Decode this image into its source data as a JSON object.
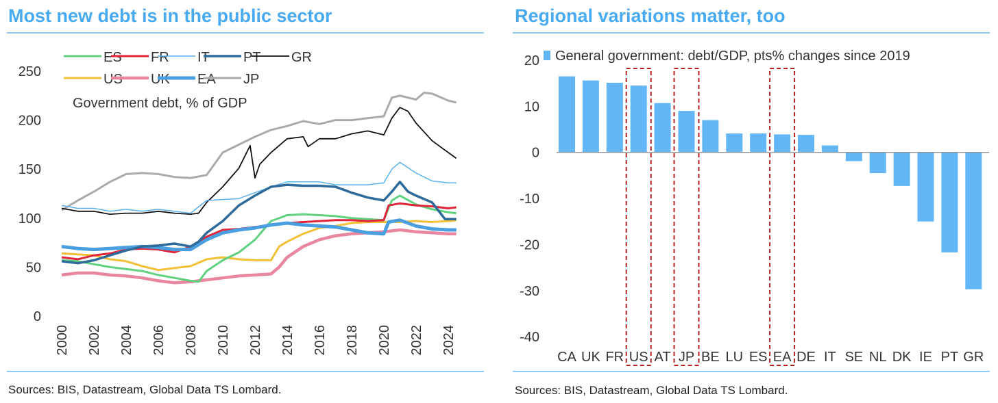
{
  "colors": {
    "title": "#4aaaf0",
    "rule": "#4aaaf0",
    "bar": "#63b6f5",
    "highlight_box": "#b22222"
  },
  "chart_data": [
    {
      "type": "line",
      "title": "Most new debt is in the public sector",
      "annotation": "Government debt, % of GDP",
      "source": "Sources: BIS, Datastream, Global Data TS Lombard.",
      "ylim": [
        0,
        250
      ],
      "yticks": [
        "0",
        "50",
        "100",
        "150",
        "200",
        "250"
      ],
      "xlim": [
        2000,
        2024.6
      ],
      "xticks": [
        "2000",
        "2002",
        "2004",
        "2006",
        "2008",
        "2010",
        "2012",
        "2014",
        "2016",
        "2018",
        "2020",
        "2022",
        "2024"
      ],
      "legend_placement": "top",
      "series": [
        {
          "name": "ES",
          "color": "#5fd17f",
          "width": 3,
          "x": [
            2000,
            2001,
            2002,
            2003,
            2004,
            2005,
            2006,
            2007,
            2008,
            2008.5,
            2009,
            2010,
            2011,
            2012,
            2013,
            2014,
            2015,
            2016,
            2017,
            2018,
            2019,
            2020,
            2020.5,
            2021,
            2022,
            2023,
            2024,
            2024.5
          ],
          "y": [
            57,
            56,
            53,
            50,
            48,
            46,
            42,
            39,
            36,
            35,
            46,
            57,
            65,
            78,
            97,
            103,
            104,
            103,
            102,
            100,
            99,
            98,
            118,
            123,
            114,
            109,
            106,
            105
          ]
        },
        {
          "name": "FR",
          "color": "#e0243a",
          "width": 3,
          "x": [
            2000,
            2001,
            2002,
            2003,
            2004,
            2005,
            2006,
            2007,
            2008,
            2009,
            2010,
            2011,
            2012,
            2013,
            2014,
            2015,
            2016,
            2017,
            2018,
            2019,
            2020,
            2020.3,
            2021,
            2022,
            2023,
            2024,
            2024.5
          ],
          "y": [
            60,
            58,
            62,
            64,
            68,
            69,
            68,
            65,
            71,
            81,
            88,
            89,
            91,
            93,
            95,
            96,
            97,
            98,
            98,
            97,
            98,
            113,
            115,
            113,
            112,
            110,
            111
          ]
        },
        {
          "name": "IT",
          "color": "#5bb1ee",
          "width": 1.5,
          "x": [
            2000,
            2001,
            2002,
            2003,
            2004,
            2005,
            2006,
            2007,
            2008,
            2009,
            2010,
            2011,
            2012,
            2013,
            2014,
            2015,
            2016,
            2017,
            2018,
            2019,
            2020,
            2020.5,
            2021,
            2022,
            2023,
            2024,
            2024.5
          ],
          "y": [
            113,
            110,
            110,
            107,
            109,
            107,
            109,
            107,
            105,
            118,
            119,
            120,
            126,
            132,
            137,
            137,
            137,
            134,
            134,
            134,
            136,
            150,
            157,
            146,
            138,
            136,
            136
          ]
        },
        {
          "name": "PT",
          "color": "#2f6b9a",
          "width": 3.5,
          "x": [
            2000,
            2001,
            2002,
            2003,
            2004,
            2005,
            2006,
            2007,
            2008,
            2008.5,
            2009,
            2010,
            2011,
            2012,
            2013,
            2014,
            2015,
            2016,
            2017,
            2018,
            2019,
            2020,
            2020.5,
            2021,
            2021.5,
            2022,
            2023,
            2023.8,
            2024.5
          ],
          "y": [
            56,
            54,
            57,
            62,
            67,
            71,
            72,
            74,
            71,
            76,
            85,
            97,
            113,
            123,
            132,
            134,
            133,
            133,
            132,
            126,
            121,
            118,
            127,
            137,
            127,
            123,
            116,
            99,
            99
          ]
        },
        {
          "name": "GR",
          "color": "#111111",
          "width": 1.8,
          "x": [
            2000,
            2001,
            2002,
            2003,
            2004,
            2005,
            2006,
            2007,
            2008,
            2008.5,
            2009,
            2010,
            2011,
            2011.7,
            2012,
            2012.3,
            2013,
            2014,
            2015,
            2015.3,
            2016,
            2017,
            2018,
            2019,
            2020,
            2020.5,
            2021,
            2021.5,
            2022,
            2023,
            2024,
            2024.5
          ],
          "y": [
            110,
            107,
            107,
            104,
            105,
            105,
            107,
            105,
            104,
            105,
            116,
            132,
            151,
            174,
            141,
            155,
            167,
            181,
            183,
            173,
            181,
            181,
            186,
            189,
            185,
            202,
            213,
            209,
            197,
            179,
            167,
            161
          ]
        },
        {
          "name": "US",
          "color": "#f2c037",
          "width": 3,
          "x": [
            2000,
            2001,
            2002,
            2003,
            2004,
            2005,
            2006,
            2007,
            2008,
            2009,
            2010,
            2011,
            2012,
            2013,
            2013.5,
            2014,
            2015,
            2016,
            2017,
            2018,
            2019,
            2020,
            2021,
            2022,
            2023,
            2024,
            2024.5
          ],
          "y": [
            64,
            63,
            62,
            58,
            56,
            51,
            47,
            49,
            51,
            58,
            60,
            58,
            57,
            57,
            71,
            76,
            84,
            90,
            92,
            95,
            96,
            96,
            96,
            97,
            96,
            97,
            98
          ]
        },
        {
          "name": "UK",
          "color": "#e8879f",
          "width": 4.5,
          "x": [
            2000,
            2001,
            2002,
            2003,
            2004,
            2005,
            2006,
            2007,
            2008,
            2009,
            2010,
            2011,
            2012,
            2013,
            2013.5,
            2014,
            2015,
            2016,
            2017,
            2018,
            2019,
            2020,
            2021,
            2022,
            2023,
            2024,
            2024.5
          ],
          "y": [
            42,
            44,
            44,
            42,
            41,
            39,
            36,
            34,
            35,
            37,
            39,
            41,
            42,
            43,
            50,
            60,
            71,
            78,
            82,
            84,
            85,
            86,
            88,
            86,
            85,
            84,
            84
          ]
        },
        {
          "name": "EA",
          "color": "#4a9fe0",
          "width": 5,
          "x": [
            2000,
            2001,
            2002,
            2003,
            2004,
            2005,
            2006,
            2007,
            2008,
            2009,
            2010,
            2011,
            2012,
            2013,
            2014,
            2015,
            2016,
            2017,
            2018,
            2019,
            2020,
            2020.3,
            2021,
            2022,
            2023,
            2024,
            2024.5
          ],
          "y": [
            71,
            69,
            68,
            69,
            70,
            71,
            70,
            68,
            68,
            78,
            85,
            88,
            90,
            93,
            95,
            93,
            92,
            91,
            88,
            85,
            84,
            96,
            98,
            92,
            89,
            88,
            88
          ]
        },
        {
          "name": "JP",
          "color": "#aaaaaa",
          "width": 3,
          "x": [
            2000,
            2001,
            2002,
            2003,
            2004,
            2005,
            2006,
            2007,
            2008,
            2009,
            2010,
            2011,
            2012,
            2013,
            2014,
            2015,
            2016,
            2017,
            2018,
            2019,
            2020,
            2020.5,
            2021,
            2022,
            2022.5,
            2023,
            2024,
            2024.5
          ],
          "y": [
            108,
            118,
            127,
            137,
            145,
            146,
            145,
            142,
            141,
            144,
            167,
            175,
            183,
            190,
            194,
            199,
            196,
            200,
            200,
            202,
            204,
            223,
            225,
            221,
            228,
            227,
            220,
            218
          ]
        }
      ]
    },
    {
      "type": "bar",
      "title": "Regional variations matter, too",
      "legend": "General government: debt/GDP, pts% changes since 2019",
      "source": "Sources: BIS, Datastream, Global Data TS Lombard.",
      "ylim": [
        -40,
        20
      ],
      "yticks": [
        "20",
        "10",
        "0",
        "-10",
        "-20",
        "-30",
        "-40"
      ],
      "categories": [
        "CA",
        "UK",
        "FR",
        "US",
        "AT",
        "JP",
        "BE",
        "LU",
        "ES",
        "EA",
        "DE",
        "IT",
        "SE",
        "NL",
        "DK",
        "IE",
        "PT",
        "GR"
      ],
      "values": [
        16.5,
        15.6,
        15.1,
        14.5,
        10.7,
        9.0,
        7.0,
        4.1,
        4.1,
        3.9,
        3.8,
        1.5,
        -1.9,
        -4.5,
        -7.3,
        -15.0,
        -21.7,
        -29.7
      ],
      "highlighted": [
        "US",
        "JP",
        "EA"
      ]
    }
  ]
}
